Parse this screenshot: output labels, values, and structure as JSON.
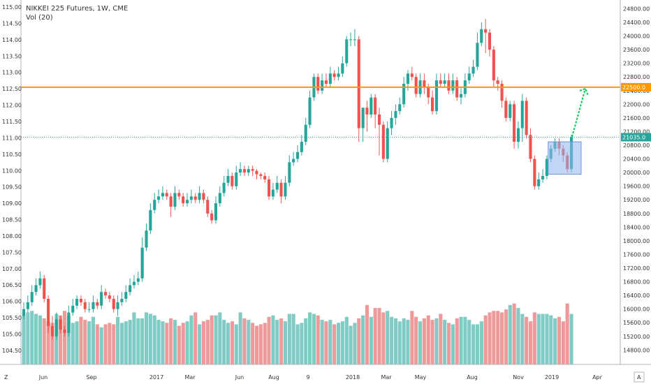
{
  "legend": {
    "symbol_line": "NIKKEI 225 Futures, 1W, CME",
    "volume_line": "Vol (20)"
  },
  "corner_labels": {
    "bottom_left": "Z",
    "bottom_right": "A"
  },
  "chart_data": {
    "type": "candlestick",
    "left_axis": {
      "ticks": [
        "115.00",
        "114.50",
        "114.00",
        "113.50",
        "113.00",
        "112.50",
        "112.00",
        "111.50",
        "111.00",
        "110.50",
        "110.00",
        "109.50",
        "109.00",
        "108.50",
        "108.00",
        "107.50",
        "107.00",
        "106.50",
        "106.00",
        "105.50",
        "105.00",
        "104.50"
      ],
      "range": [
        104.2,
        115.0
      ]
    },
    "right_axis": {
      "ticks": [
        "24800.00",
        "24400.00",
        "24000.00",
        "23600.00",
        "23200.00",
        "22800.00",
        "22400.00",
        "22000.00",
        "21600.00",
        "21200.00",
        "20800.00",
        "20400.00",
        "20000.00",
        "19600.00",
        "19200.00",
        "18800.00",
        "18400.00",
        "18000.00",
        "17600.00",
        "17200.00",
        "16800.00",
        "16400.00",
        "16000.00",
        "15600.00",
        "15200.00",
        "14800.00"
      ],
      "range": [
        14500,
        24850
      ],
      "price_label": "21035.0",
      "level_label": "22500.0"
    },
    "time_axis": [
      "Jun",
      "Sep",
      "2017",
      "Mar",
      "Jun",
      "Aug",
      "9",
      "2018",
      "Mar",
      "May",
      "Aug",
      "Nov",
      "2019",
      "Apr"
    ],
    "horizontal_level": 22500,
    "last_price": 21035,
    "colors": {
      "up": "#26a69a",
      "down": "#ef5350",
      "level_line": "#ff9800",
      "last_price": "#26a69a",
      "arrow": "#00c853",
      "box": "#90b4f0"
    },
    "candles_close": [
      16000,
      16200,
      16500,
      16700,
      16900,
      16300,
      15500,
      15200,
      15700,
      15400,
      15300,
      15900,
      16100,
      16300,
      16200,
      16000,
      16000,
      16200,
      16100,
      16500,
      16400,
      16300,
      16000,
      16200,
      16300,
      16500,
      16700,
      16800,
      16900,
      17800,
      18300,
      18900,
      19200,
      19300,
      19400,
      19300,
      19000,
      19400,
      19300,
      19100,
      19200,
      19300,
      19200,
      19400,
      19200,
      18800,
      18600,
      19100,
      19400,
      19700,
      19900,
      19600,
      20000,
      20100,
      20000,
      20100,
      20050,
      19950,
      19900,
      19800,
      19300,
      19500,
      19700,
      19300,
      19700,
      20300,
      20400,
      20600,
      20900,
      21400,
      22200,
      22800,
      22400,
      22700,
      22600,
      22900,
      22800,
      22900,
      23200,
      23900,
      23900,
      23900,
      21300,
      21900,
      21700,
      22200,
      21700,
      21400,
      20400,
      21300,
      21600,
      21800,
      22000,
      22600,
      22900,
      22800,
      22300,
      22700,
      22500,
      22200,
      21800,
      22700,
      22600,
      22700,
      22400,
      22700,
      22200,
      22300,
      22700,
      22900,
      23100,
      23800,
      24200,
      24100,
      23600,
      22700,
      22600,
      22100,
      21600,
      22000,
      20900,
      21300,
      22100,
      21100,
      20400,
      19600,
      19800,
      19900,
      20400,
      20700,
      20900,
      20700,
      20500,
      20100,
      21035
    ],
    "candles_open": [
      15800,
      16000,
      16200,
      16500,
      16700,
      16900,
      16300,
      15500,
      15200,
      15700,
      15400,
      15300,
      15900,
      16100,
      16300,
      16200,
      16000,
      16000,
      16200,
      16100,
      16500,
      16400,
      16300,
      16000,
      16200,
      16300,
      16500,
      16700,
      16800,
      16900,
      17800,
      18300,
      18900,
      19200,
      19300,
      19400,
      19300,
      19000,
      19400,
      19300,
      19100,
      19200,
      19300,
      19200,
      19400,
      19200,
      18800,
      18600,
      19100,
      19400,
      19700,
      19900,
      19600,
      20000,
      20100,
      20000,
      20100,
      20050,
      19950,
      19900,
      19800,
      19300,
      19500,
      19700,
      19300,
      19700,
      20300,
      20400,
      20600,
      20900,
      21400,
      22200,
      22800,
      22400,
      22700,
      22600,
      22900,
      22800,
      22900,
      23200,
      23900,
      23900,
      23900,
      21300,
      21900,
      21700,
      22200,
      21700,
      21400,
      20400,
      21300,
      21600,
      21800,
      22000,
      22600,
      22900,
      22800,
      22300,
      22700,
      22500,
      22200,
      21800,
      22700,
      22600,
      22700,
      22400,
      22700,
      22200,
      22300,
      22700,
      22900,
      23100,
      23800,
      24200,
      24100,
      23600,
      22700,
      22600,
      22100,
      21600,
      22000,
      20900,
      21300,
      22100,
      21100,
      20400,
      19600,
      19800,
      19900,
      20400,
      20700,
      20900,
      20700,
      20500,
      20100
    ],
    "candles_high": [
      16200,
      16400,
      16700,
      16900,
      17100,
      17000,
      16400,
      15800,
      15900,
      15800,
      15500,
      16100,
      16300,
      16400,
      16400,
      16300,
      16200,
      16400,
      16300,
      16700,
      16600,
      16500,
      16400,
      16400,
      16500,
      16700,
      16900,
      17000,
      17100,
      18100,
      18500,
      19100,
      19400,
      19500,
      19600,
      19500,
      19400,
      19600,
      19500,
      19400,
      19400,
      19500,
      19400,
      19600,
      19500,
      19300,
      18900,
      19300,
      19600,
      19900,
      20100,
      20000,
      20200,
      20300,
      20200,
      20200,
      20200,
      20100,
      20000,
      20000,
      19900,
      19700,
      19900,
      19800,
      19900,
      20500,
      20600,
      20800,
      21100,
      21600,
      22400,
      22900,
      22900,
      22900,
      22900,
      23100,
      23000,
      23100,
      23400,
      24000,
      24100,
      24200,
      24000,
      21700,
      22100,
      22300,
      22300,
      21900,
      21500,
      21500,
      21800,
      22000,
      22200,
      22800,
      23000,
      23100,
      22900,
      22900,
      22900,
      22600,
      22400,
      22900,
      22900,
      22900,
      22900,
      22900,
      22800,
      22500,
      22900,
      23100,
      23300,
      24100,
      24400,
      24500,
      24200,
      23700,
      22800,
      22700,
      22200,
      22100,
      22100,
      21500,
      22300,
      22200,
      21300,
      20500,
      20000,
      20100,
      20500,
      20800,
      21000,
      21000,
      20800,
      20600,
      21100
    ],
    "candles_low": [
      15700,
      15900,
      16100,
      16400,
      16600,
      16200,
      15300,
      15100,
      15100,
      15300,
      15200,
      15200,
      15800,
      16000,
      16100,
      15900,
      15900,
      15900,
      16000,
      16000,
      16300,
      16200,
      15900,
      15800,
      16100,
      16200,
      16400,
      16600,
      16700,
      16800,
      17700,
      18200,
      18800,
      19100,
      19200,
      19200,
      18700,
      18900,
      19200,
      19000,
      19000,
      19100,
      19100,
      19100,
      19100,
      18700,
      18500,
      18500,
      19000,
      19300,
      19600,
      19500,
      19500,
      19900,
      19900,
      19900,
      19900,
      19800,
      19800,
      19700,
      19200,
      19200,
      19400,
      19100,
      19200,
      19600,
      20200,
      20300,
      20500,
      20800,
      21300,
      22100,
      22300,
      22300,
      22500,
      22500,
      22700,
      22700,
      22800,
      23100,
      23700,
      23700,
      20900,
      20900,
      21200,
      21600,
      21300,
      20500,
      20300,
      20300,
      21100,
      21400,
      21700,
      21900,
      22400,
      22700,
      22200,
      22200,
      22300,
      22000,
      21700,
      21700,
      22500,
      22500,
      22300,
      22300,
      22100,
      22000,
      22200,
      22600,
      22800,
      23000,
      23700,
      23500,
      23400,
      22500,
      22400,
      21900,
      21500,
      21500,
      20700,
      20700,
      20900,
      21000,
      20300,
      19500,
      19500,
      19700,
      19800,
      20300,
      20600,
      20500,
      20300,
      20000,
      20000
    ],
    "volume": [
      33,
      35,
      36,
      34,
      33,
      31,
      29,
      28,
      34,
      33,
      36,
      33,
      28,
      29,
      32,
      30,
      29,
      32,
      27,
      25,
      27,
      28,
      27,
      32,
      28,
      29,
      30,
      35,
      31,
      31,
      35,
      34,
      33,
      30,
      29,
      28,
      31,
      30,
      26,
      28,
      29,
      33,
      35,
      27,
      29,
      30,
      33,
      33,
      35,
      30,
      28,
      29,
      27,
      35,
      31,
      30,
      28,
      26,
      27,
      28,
      32,
      33,
      30,
      31,
      29,
      34,
      34,
      27,
      28,
      31,
      35,
      34,
      33,
      30,
      29,
      30,
      27,
      28,
      29,
      32,
      26,
      28,
      31,
      33,
      40,
      32,
      38,
      38,
      35,
      36,
      32,
      31,
      29,
      31,
      30,
      36,
      32,
      29,
      31,
      33,
      30,
      31,
      34,
      30,
      28,
      27,
      31,
      32,
      32,
      30,
      27,
      27,
      29,
      33,
      35,
      36,
      36,
      35,
      37,
      40,
      41,
      38,
      34,
      32,
      29,
      35,
      34,
      34,
      34,
      33,
      31,
      32,
      29,
      41,
      34
    ]
  }
}
